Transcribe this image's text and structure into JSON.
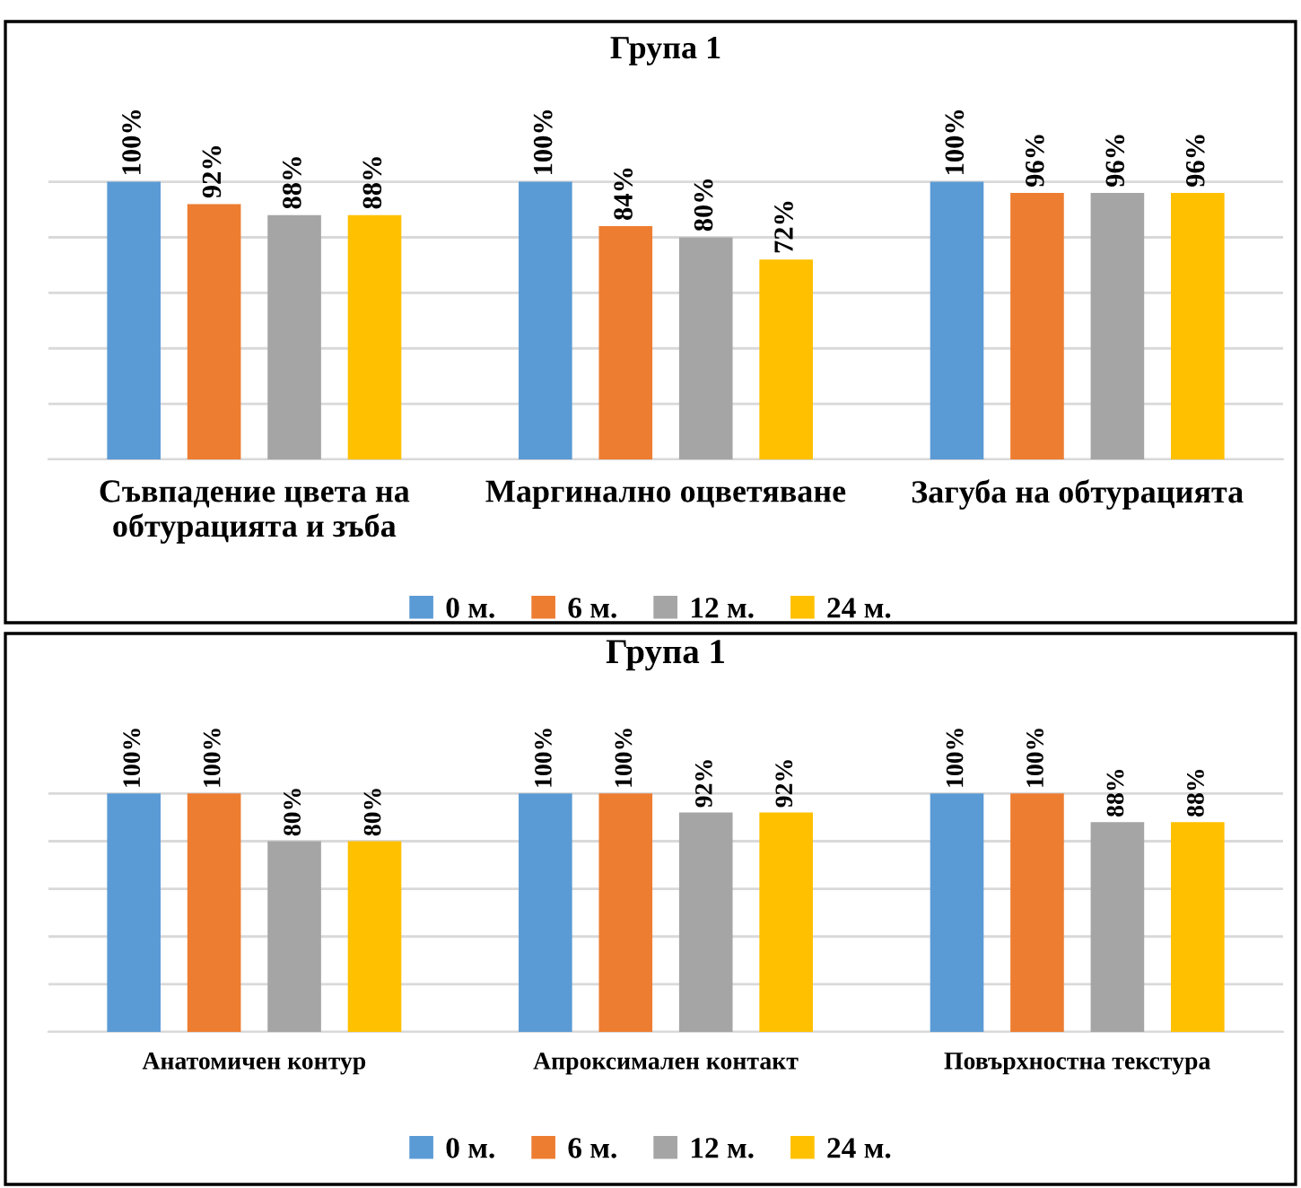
{
  "chart_data": [
    {
      "type": "bar",
      "title": "Група 1",
      "categories": [
        "Съвпадение цвета на\nобтурацията и зъба",
        "Маргинално оцветяване",
        "Загуба на обтурацията"
      ],
      "series": [
        {
          "name": "0 м.",
          "color": "#5b9bd5",
          "values": [
            100,
            100,
            100
          ],
          "value_labels": [
            "100%",
            "100%",
            "100%"
          ]
        },
        {
          "name": "6 м.",
          "color": "#ed7d31",
          "values": [
            92,
            84,
            96
          ],
          "value_labels": [
            "92%",
            "84%",
            "96%"
          ]
        },
        {
          "name": "12 м.",
          "color": "#a5a5a5",
          "values": [
            88,
            80,
            96
          ],
          "value_labels": [
            "88%",
            "80%",
            "96%"
          ]
        },
        {
          "name": "24 м.",
          "color": "#ffc000",
          "values": [
            88,
            72,
            96
          ],
          "value_labels": [
            "88%",
            "72%",
            "96%"
          ]
        }
      ],
      "yticks": [
        {
          "value": 0,
          "label": null
        },
        {
          "value": 20,
          "label": null
        },
        {
          "value": 40,
          "label": null
        },
        {
          "value": 60,
          "label": null
        },
        {
          "value": 80,
          "label": null
        },
        {
          "value": 100,
          "label": null
        }
      ],
      "grid": "y",
      "legend": "bottom",
      "tick_labels": "x"
    },
    {
      "type": "bar",
      "title": "Група 1",
      "categories": [
        "Анатомичен контур",
        "Апроксимален контакт",
        "Повърхностна текстура"
      ],
      "series": [
        {
          "name": "0 м.",
          "color": "#5b9bd5",
          "values": [
            100,
            100,
            100
          ],
          "value_labels": [
            "100%",
            "100%",
            "100%"
          ]
        },
        {
          "name": "6 м.",
          "color": "#ed7d31",
          "values": [
            100,
            100,
            100
          ],
          "value_labels": [
            "100%",
            "100%",
            "100%"
          ]
        },
        {
          "name": "12 м.",
          "color": "#a5a5a5",
          "values": [
            80,
            92,
            88
          ],
          "value_labels": [
            "80%",
            "92%",
            "88%"
          ]
        },
        {
          "name": "24 м.",
          "color": "#ffc000",
          "values": [
            80,
            92,
            88
          ],
          "value_labels": [
            "80%",
            "92%",
            "88%"
          ]
        }
      ],
      "yticks": [
        {
          "value": 0,
          "label": null
        },
        {
          "value": 20,
          "label": null
        },
        {
          "value": 40,
          "label": null
        },
        {
          "value": 60,
          "label": null
        },
        {
          "value": 80,
          "label": null
        },
        {
          "value": 100,
          "label": null
        }
      ],
      "grid": "y",
      "legend": "bottom",
      "tick_labels": "x"
    }
  ]
}
